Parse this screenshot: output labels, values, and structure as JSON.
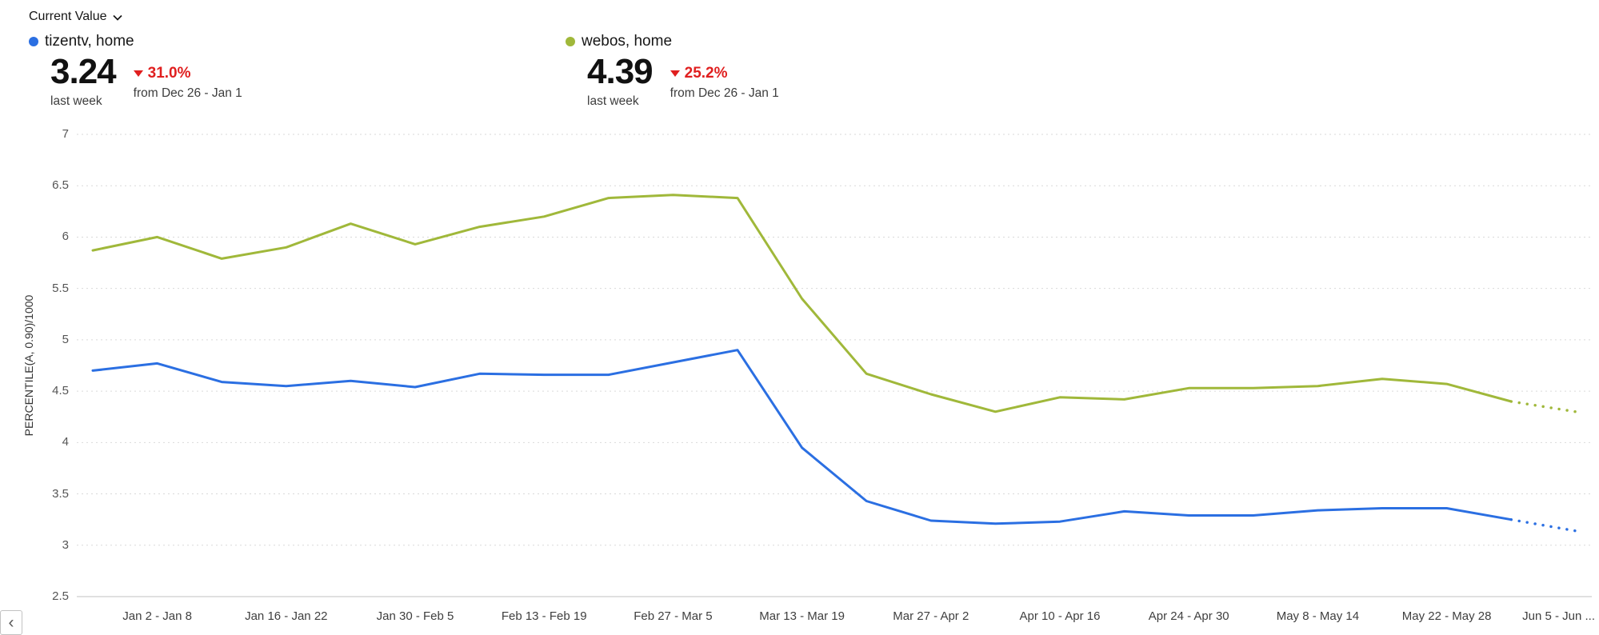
{
  "header": {
    "metric_selector": {
      "label": "Current Value"
    }
  },
  "kpis": [
    {
      "series": "tizentv, home",
      "color": "#2b6fe2",
      "value": "3.24",
      "period": "last week",
      "change": "31.0%",
      "change_direction": "down",
      "change_color": "#e01f1f",
      "comparison": "from Dec 26 - Jan 1"
    },
    {
      "series": "webos, home",
      "color": "#a0b83a",
      "value": "4.39",
      "period": "last week",
      "change": "25.2%",
      "change_direction": "down",
      "change_color": "#e01f1f",
      "comparison": "from Dec 26 - Jan 1"
    }
  ],
  "chart_data": {
    "type": "line",
    "title": "",
    "ylabel": "PERCENTILE(A, 0.90)/1000",
    "ylim": [
      2.5,
      7
    ],
    "yticks": [
      7,
      6.5,
      6,
      5.5,
      5,
      4.5,
      4,
      3.5,
      3,
      2.5
    ],
    "grid": "dotted-horizontal",
    "legend_position": "top-as-kpi-cards",
    "n_points": 24,
    "dotted_from_index": 22,
    "x_labels": [
      "Jan 2 - Jan 8",
      "Jan 16 - Jan 22",
      "Jan 30 - Feb 5",
      "Feb 13 - Feb 19",
      "Feb 27 - Mar 5",
      "Mar 13 - Mar 19",
      "Mar 27 - Apr 2",
      "Apr 10 - Apr 16",
      "Apr 24 - Apr 30",
      "May 8 - May 14",
      "May 22 - May 28",
      "Jun 5 - Jun ..."
    ],
    "x_label_indices": [
      1,
      3,
      5,
      7,
      9,
      11,
      13,
      15,
      17,
      19,
      21,
      23
    ],
    "series": [
      {
        "name": "tizentv, home",
        "color": "#2b6fe2",
        "values": [
          4.7,
          4.77,
          4.59,
          4.55,
          4.6,
          4.54,
          4.67,
          4.66,
          4.66,
          4.78,
          4.9,
          3.95,
          3.43,
          3.24,
          3.21,
          3.23,
          3.33,
          3.29,
          3.29,
          3.34,
          3.36,
          3.36,
          3.25,
          3.14
        ]
      },
      {
        "name": "webos, home",
        "color": "#a0b83a",
        "values": [
          5.87,
          6.0,
          5.79,
          5.9,
          6.13,
          5.93,
          6.1,
          6.2,
          6.38,
          6.41,
          6.38,
          5.4,
          4.67,
          4.47,
          4.3,
          4.44,
          4.42,
          4.53,
          4.53,
          4.55,
          4.62,
          4.57,
          4.4,
          4.3
        ]
      }
    ]
  },
  "pager": {
    "left_button": "‹"
  },
  "colors": {
    "grid": "#d9d9d9",
    "axis_baseline": "#c2c2c2",
    "negative": "#e01f1f"
  }
}
